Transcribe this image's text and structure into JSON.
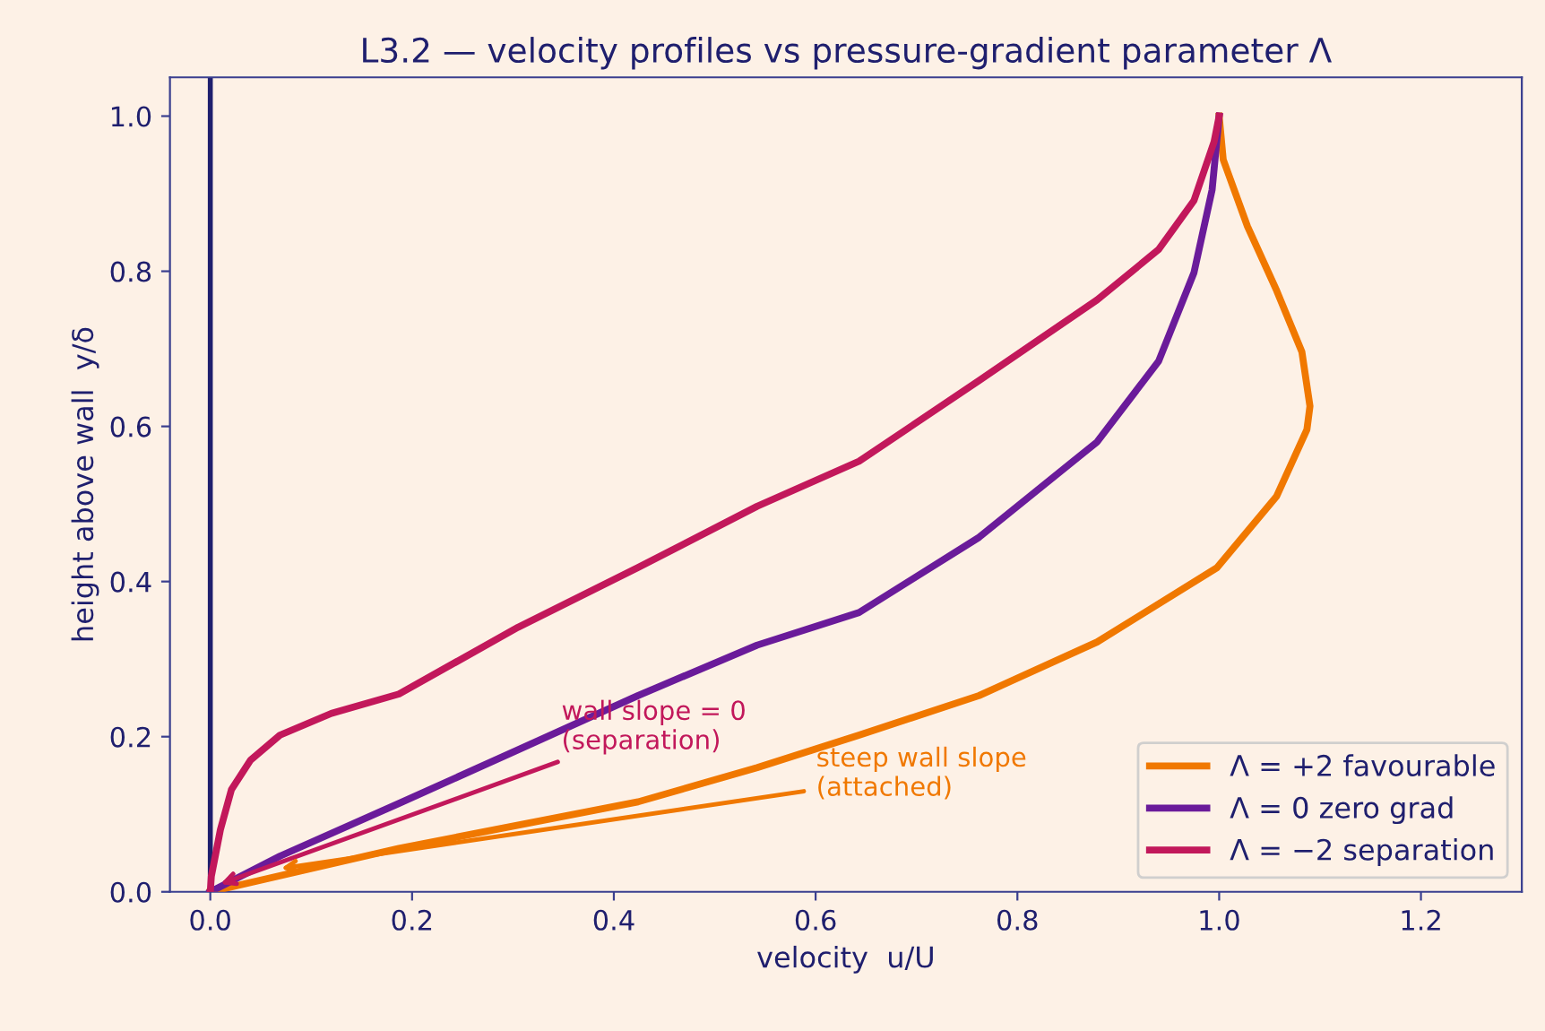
{
  "chart_data": {
    "type": "line",
    "title": "L3.2 — velocity profiles vs pressure-gradient parameter Λ",
    "xlabel": "velocity  u/U",
    "ylabel": "height above wall  y/δ",
    "xlim": [
      -0.04,
      1.3
    ],
    "ylim": [
      0,
      1.05
    ],
    "xticks": [
      {
        "value": 0,
        "label": "0.0"
      },
      0.2,
      0.4,
      0.6,
      0.8,
      {
        "value": 1,
        "label": "1.0"
      },
      1.2
    ],
    "yticks": [
      {
        "value": 0,
        "label": "0.0"
      },
      0.2,
      0.4,
      0.6,
      0.8,
      {
        "value": 1,
        "label": "1.0"
      }
    ],
    "grid": false,
    "legend": "bottom right",
    "marker": "none",
    "line_style": "solid",
    "ref_lines": [
      {
        "axis": "x",
        "value": 0,
        "label": null,
        "color": "#1f1f6e",
        "line_style": "solid"
      }
    ],
    "annotations": [
      {
        "text": "wall slope = 0\n(separation)",
        "x": 0.01,
        "y": 0.01
      },
      {
        "text": "steep wall slope\n(attached)",
        "x": 0.07,
        "y": 0.03
      }
    ],
    "series": [
      {
        "name": "Λ = +2 favourable",
        "color": "#f07800",
        "x": [
          0,
          0.187,
          0.424,
          0.542,
          0.643,
          0.762,
          0.879,
          0.998,
          1.057,
          1.087,
          1.09,
          1.082,
          1.057,
          1.028,
          1.004,
          1.0
        ],
        "values": [
          0,
          0.056,
          0.116,
          0.16,
          0.202,
          0.253,
          0.322,
          0.418,
          0.51,
          0.596,
          0.626,
          0.696,
          0.775,
          0.858,
          0.944,
          1.0
        ]
      },
      {
        "name": "Λ = 0 zero grad",
        "color": "#6a1b9a",
        "x": [
          0,
          0.069,
          0.187,
          0.305,
          0.424,
          0.542,
          0.643,
          0.762,
          0.879,
          0.94,
          0.975,
          0.993,
          1.0
        ],
        "values": [
          0,
          0.046,
          0.114,
          0.183,
          0.253,
          0.318,
          0.36,
          0.457,
          0.58,
          0.684,
          0.798,
          0.905,
          1.0
        ]
      },
      {
        "name": "Λ = −2 separation",
        "color": "#c2185b",
        "x": [
          0,
          0.001,
          0.004,
          0.01,
          0.021,
          0.04,
          0.069,
          0.12,
          0.187,
          0.305,
          0.424,
          0.542,
          0.643,
          0.762,
          0.879,
          0.94,
          0.975,
          0.995,
          1.0
        ],
        "values": [
          0,
          0.02,
          0.04,
          0.08,
          0.132,
          0.17,
          0.202,
          0.23,
          0.255,
          0.341,
          0.418,
          0.497,
          0.555,
          0.659,
          0.763,
          0.828,
          0.891,
          0.967,
          1.0
        ]
      }
    ]
  }
}
